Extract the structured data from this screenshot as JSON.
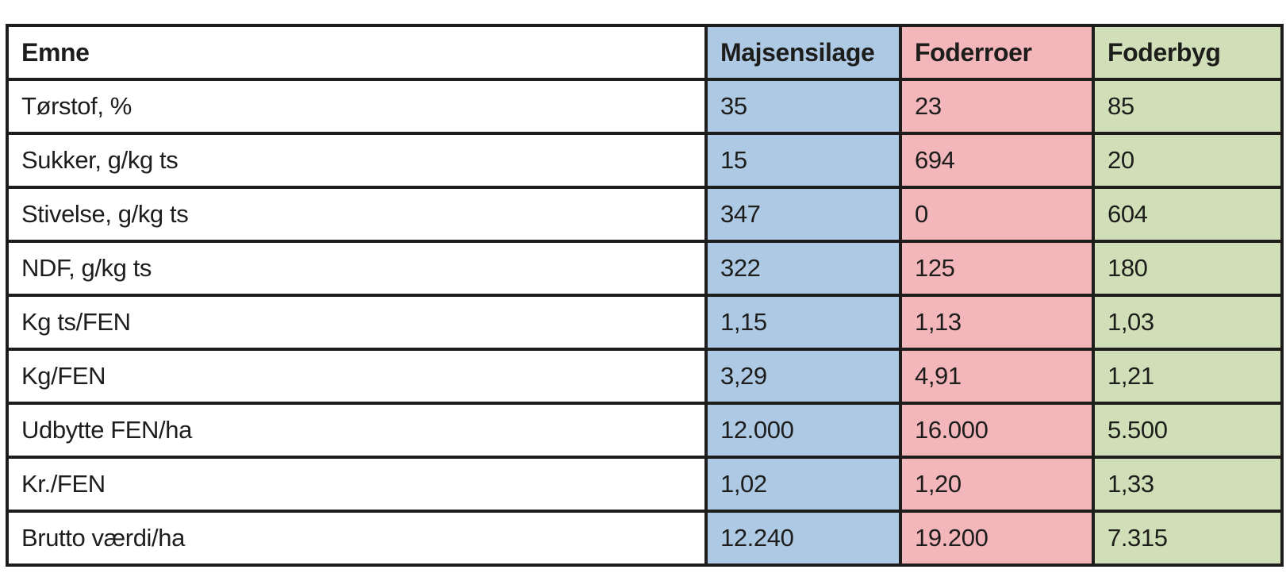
{
  "colors": {
    "majsensilage_bg": "#aec9e4",
    "foderroer_bg": "#f2b6bb",
    "foderbyg_bg": "#d0dfb8",
    "border": "#1d1d1b",
    "text": "#1d1d1b",
    "page_bg": "#ffffff"
  },
  "table": {
    "columns": [
      {
        "label": "Emne"
      },
      {
        "label": "Majsensilage"
      },
      {
        "label": "Foderroer"
      },
      {
        "label": "Foderbyg"
      }
    ],
    "rows": [
      {
        "label": "Tørstof, %",
        "values": [
          "35",
          "23",
          "85"
        ]
      },
      {
        "label": "Sukker, g/kg ts",
        "values": [
          "15",
          "694",
          "20"
        ]
      },
      {
        "label": "Stivelse, g/kg ts",
        "values": [
          "347",
          "0",
          "604"
        ]
      },
      {
        "label": "NDF, g/kg ts",
        "values": [
          "322",
          "125",
          "180"
        ]
      },
      {
        "label": "Kg ts/FEN",
        "values": [
          "1,15",
          "1,13",
          "1,03"
        ]
      },
      {
        "label": "Kg/FEN",
        "values": [
          "3,29",
          "4,91",
          "1,21"
        ]
      },
      {
        "label": "Udbytte FEN/ha",
        "values": [
          "12.000",
          "16.000",
          "5.500"
        ]
      },
      {
        "label": "Kr./FEN",
        "values": [
          "1,02",
          "1,20",
          "1,33"
        ]
      },
      {
        "label": "Brutto værdi/ha",
        "values": [
          "12.240",
          "19.200",
          "7.315"
        ]
      }
    ]
  },
  "chart_data": {
    "type": "table",
    "title": "",
    "categories": [
      "Tørstof, %",
      "Sukker, g/kg ts",
      "Stivelse, g/kg ts",
      "NDF, g/kg ts",
      "Kg ts/FEN",
      "Kg/FEN",
      "Udbytte FEN/ha",
      "Kr./FEN",
      "Brutto værdi/ha"
    ],
    "series": [
      {
        "name": "Majsensilage",
        "values": [
          "35",
          "15",
          "347",
          "322",
          "1,15",
          "3,29",
          "12.000",
          "1,02",
          "12.240"
        ]
      },
      {
        "name": "Foderroer",
        "values": [
          "23",
          "694",
          "0",
          "125",
          "1,13",
          "4,91",
          "16.000",
          "1,20",
          "19.200"
        ]
      },
      {
        "name": "Foderbyg",
        "values": [
          "85",
          "20",
          "604",
          "180",
          "1,03",
          "1,21",
          "5.500",
          "1,33",
          "7.315"
        ]
      }
    ],
    "layout": {
      "header_row": true,
      "column_fill_colors": [
        "#ffffff",
        "#aec9e4",
        "#f2b6bb",
        "#d0dfb8"
      ],
      "grid": "on"
    }
  }
}
